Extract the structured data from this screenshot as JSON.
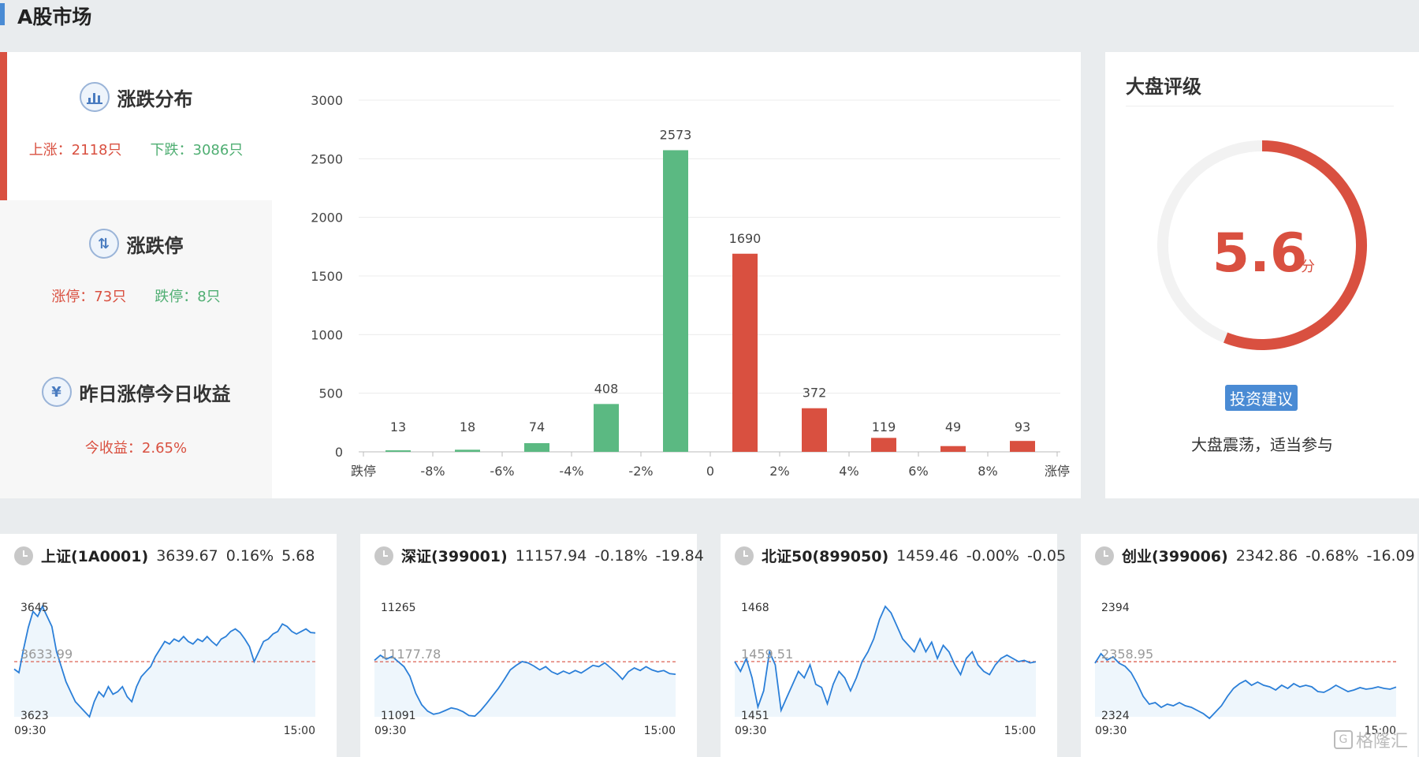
{
  "page": {
    "title": "A股市场"
  },
  "left": {
    "dist": {
      "title": "涨跌分布",
      "icon": "bar-chart-icon",
      "up": "上涨：2118只",
      "down": "下跌：3086只"
    },
    "limit": {
      "title": "涨跌停",
      "icon": "up-down-arrows-icon",
      "up": "涨停：73只",
      "down": "跌停：8只"
    },
    "yest": {
      "title": "昨日涨停今日收益",
      "icon": "yen-icon",
      "yen": "¥",
      "gain": "今收益：2.65%"
    }
  },
  "chart_data": {
    "type": "bar",
    "categories": [
      "跌停",
      "-8%",
      "-6%",
      "-4%",
      "-2%",
      "0",
      "2%",
      "4%",
      "6%",
      "8%",
      "涨停"
    ],
    "bars": [
      {
        "value": 13,
        "color": "#5bb982"
      },
      {
        "value": 18,
        "color": "#5bb982"
      },
      {
        "value": 74,
        "color": "#5bb982"
      },
      {
        "value": 408,
        "color": "#5bb982"
      },
      {
        "value": 2573,
        "color": "#5bb982"
      },
      {
        "value": 1690,
        "color": "#d95040"
      },
      {
        "value": 372,
        "color": "#d95040"
      },
      {
        "value": 119,
        "color": "#d95040"
      },
      {
        "value": 49,
        "color": "#d95040"
      },
      {
        "value": 93,
        "color": "#d95040"
      }
    ],
    "yticks": [
      "0",
      "500",
      "1000",
      "1500",
      "2000",
      "2500",
      "3000"
    ],
    "ylim": [
      0,
      3000
    ],
    "grid": true
  },
  "rating": {
    "title": "大盘评级",
    "score": "5.6",
    "unit": "分",
    "score_value": 5.6,
    "score_max": 10,
    "advice_label": "投资建议",
    "advice": "大盘震荡，适当参与",
    "color": "#d95040"
  },
  "indices": [
    {
      "name": "上证(1A0001)",
      "value": "3639.67",
      "pct": "0.16%",
      "chg": "5.68",
      "high": "3645",
      "low": "3623",
      "ref": "3633.99",
      "t_start": "09:30",
      "t_end": "15:00",
      "series": [
        3632.5,
        3631.8,
        3636.5,
        3640.8,
        3644,
        3643,
        3645,
        3643,
        3641,
        3636,
        3633,
        3630,
        3628,
        3626,
        3625,
        3624,
        3623,
        3626,
        3628,
        3627,
        3629,
        3627.5,
        3628,
        3629,
        3627,
        3626,
        3629,
        3631,
        3632,
        3633,
        3635,
        3636.5,
        3638,
        3637.5,
        3638.5,
        3638,
        3639,
        3638,
        3637.5,
        3638.5,
        3638,
        3639,
        3638,
        3637.2,
        3638.5,
        3639,
        3640,
        3640.5,
        3639.8,
        3638.5,
        3637,
        3634,
        3636,
        3638,
        3638.5,
        3639.5,
        3640,
        3641.5,
        3641,
        3640,
        3639.5,
        3640,
        3640.5,
        3639.8,
        3639.7
      ]
    },
    {
      "name": "深证(399001)",
      "value": "11157.94",
      "pct": "-0.18%",
      "chg": "-19.84",
      "high": "11265",
      "low": "11091",
      "ref": "11177.78",
      "t_start": "09:30",
      "t_end": "15:00",
      "series": [
        11180,
        11188,
        11182,
        11186,
        11178,
        11170,
        11155,
        11128,
        11110,
        11100,
        11095,
        11097,
        11101,
        11105,
        11103,
        11099,
        11093,
        11092,
        11101,
        11112,
        11124,
        11136,
        11150,
        11165,
        11172,
        11178,
        11176,
        11171,
        11165,
        11170,
        11162,
        11158,
        11163,
        11159,
        11164,
        11160,
        11166,
        11172,
        11170,
        11176,
        11168,
        11160,
        11150,
        11162,
        11168,
        11164,
        11170,
        11165,
        11162,
        11164,
        11159,
        11158
      ]
    },
    {
      "name": "北证50(899050)",
      "value": "1459.46",
      "pct": "-0.00%",
      "chg": "-0.05",
      "high": "1468",
      "low": "1451",
      "ref": "1459.51",
      "t_start": "09:30",
      "t_end": "15:00",
      "series": [
        1459.5,
        1458,
        1460,
        1457,
        1452.5,
        1455,
        1461,
        1459,
        1452,
        1454,
        1456,
        1458,
        1457,
        1459,
        1456,
        1455.5,
        1453,
        1456,
        1458,
        1457,
        1455,
        1457,
        1459.5,
        1461,
        1463,
        1466,
        1468,
        1467,
        1465,
        1463,
        1462,
        1461,
        1463,
        1461,
        1462.5,
        1460,
        1462,
        1461,
        1459,
        1457.5,
        1460,
        1461,
        1459,
        1458,
        1457.5,
        1459,
        1460,
        1460.5,
        1460,
        1459.5,
        1459.7,
        1459.3,
        1459.46
      ]
    },
    {
      "name": "创业(399006)",
      "value": "2342.86",
      "pct": "-0.68%",
      "chg": "-16.09",
      "high": "2394",
      "low": "2324",
      "ref": "2358.95",
      "t_start": "09:30",
      "t_end": "15:00",
      "series": [
        2358,
        2364,
        2360,
        2362,
        2358,
        2356,
        2352,
        2345,
        2337,
        2332,
        2333,
        2330,
        2332,
        2331,
        2333,
        2331,
        2330,
        2328,
        2326,
        2323,
        2327,
        2331,
        2337,
        2342,
        2345,
        2347,
        2344,
        2346,
        2344,
        2343,
        2341,
        2344,
        2342,
        2345,
        2343,
        2344,
        2343,
        2340,
        2339.5,
        2341.5,
        2344,
        2342,
        2340,
        2341,
        2342.5,
        2341.5,
        2342,
        2343,
        2342,
        2341.5,
        2342.86
      ]
    }
  ],
  "watermark": {
    "box": "G",
    "text": "格隆汇"
  }
}
